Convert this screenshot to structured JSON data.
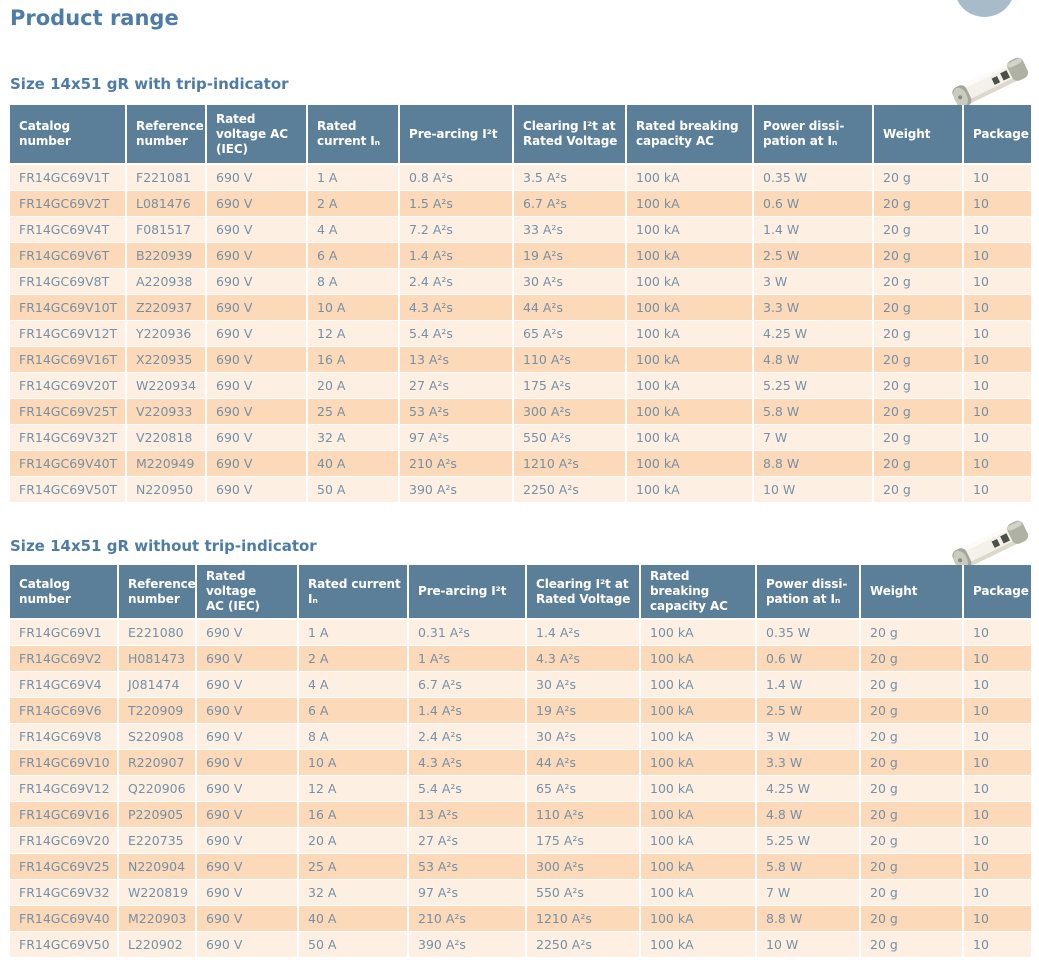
{
  "page": {
    "title": "Product range"
  },
  "decor": {
    "corner_circle_icon": "corner-circle-decoration",
    "fuse_icon": "fuse-product-photo"
  },
  "colors": {
    "heading_text": "#4d7ca6",
    "table_header_bg": "#5c7f99",
    "table_header_text": "#ffffff",
    "row_light_bg": "#fdf0e3",
    "row_dark_bg": "#fbd9b9",
    "cell_text": "#7590a6",
    "corner_circle": "#a7bbc9"
  },
  "sections": [
    {
      "heading": "Size 14x51 gR with trip-indicator",
      "columns": [
        "Catalog\nnumber",
        "Reference\nnumber",
        "Rated\nvoltage AC\n(IEC)",
        "Rated\ncurrent Iₙ",
        "Pre-arcing I²t",
        "Clearing I²t at\nRated Voltage",
        "Rated breaking\ncapacity AC",
        "Power dissi-\npation at Iₙ",
        "Weight",
        "Package"
      ],
      "rows": [
        [
          "FR14GC69V1T",
          "F221081",
          "690 V",
          "1 A",
          "0.8 A²s",
          "3.5 A²s",
          "100 kA",
          "0.35 W",
          "20 g",
          "10"
        ],
        [
          "FR14GC69V2T",
          "L081476",
          "690 V",
          "2 A",
          "1.5 A²s",
          "6.7 A²s",
          "100 kA",
          "0.6 W",
          "20 g",
          "10"
        ],
        [
          "FR14GC69V4T",
          "F081517",
          "690 V",
          "4 A",
          "7.2 A²s",
          "33 A²s",
          "100 kA",
          "1.4 W",
          "20 g",
          "10"
        ],
        [
          "FR14GC69V6T",
          "B220939",
          "690 V",
          "6 A",
          "1.4 A²s",
          "19 A²s",
          "100 kA",
          "2.5 W",
          "20 g",
          "10"
        ],
        [
          "FR14GC69V8T",
          "A220938",
          "690 V",
          "8 A",
          "2.4 A²s",
          "30 A²s",
          "100 kA",
          "3 W",
          "20 g",
          "10"
        ],
        [
          "FR14GC69V10T",
          "Z220937",
          "690 V",
          "10 A",
          "4.3 A²s",
          "44 A²s",
          "100 kA",
          "3.3 W",
          "20 g",
          "10"
        ],
        [
          "FR14GC69V12T",
          "Y220936",
          "690 V",
          "12 A",
          "5.4 A²s",
          "65 A²s",
          "100 kA",
          "4.25 W",
          "20 g",
          "10"
        ],
        [
          "FR14GC69V16T",
          "X220935",
          "690 V",
          "16 A",
          "13 A²s",
          "110 A²s",
          "100 kA",
          "4.8 W",
          "20 g",
          "10"
        ],
        [
          "FR14GC69V20T",
          "W220934",
          "690 V",
          "20 A",
          "27 A²s",
          "175 A²s",
          "100 kA",
          "5.25 W",
          "20 g",
          "10"
        ],
        [
          "FR14GC69V25T",
          "V220933",
          "690 V",
          "25 A",
          "53 A²s",
          "300 A²s",
          "100 kA",
          "5.8 W",
          "20 g",
          "10"
        ],
        [
          "FR14GC69V32T",
          "V220818",
          "690 V",
          "32 A",
          "97 A²s",
          "550 A²s",
          "100 kA",
          "7 W",
          "20 g",
          "10"
        ],
        [
          "FR14GC69V40T",
          "M220949",
          "690 V",
          "40 A",
          "210 A²s",
          "1210 A²s",
          "100 kA",
          "8.8 W",
          "20 g",
          "10"
        ],
        [
          "FR14GC69V50T",
          "N220950",
          "690 V",
          "50 A",
          "390 A²s",
          "2250 A²s",
          "100 kA",
          "10 W",
          "20 g",
          "10"
        ]
      ]
    },
    {
      "heading": "Size 14x51 gR without trip-indicator",
      "columns": [
        "Catalog\nnumber",
        "Reference\nnumber",
        "Rated voltage\nAC (IEC)",
        "Rated current\nIₙ",
        "Pre-arcing I²t",
        "Clearing I²t at\nRated Voltage",
        "Rated breaking\ncapacity AC",
        "Power dissi-\npation at Iₙ",
        "Weight",
        "Package"
      ],
      "rows": [
        [
          "FR14GC69V1",
          "E221080",
          "690 V",
          "1 A",
          "0.31 A²s",
          "1.4 A²s",
          "100 kA",
          "0.35 W",
          "20 g",
          "10"
        ],
        [
          "FR14GC69V2",
          "H081473",
          "690 V",
          "2 A",
          "1 A²s",
          "4.3 A²s",
          "100 kA",
          "0.6 W",
          "20 g",
          "10"
        ],
        [
          "FR14GC69V4",
          "J081474",
          "690 V",
          "4 A",
          "6.7 A²s",
          "30 A²s",
          "100 kA",
          "1.4 W",
          "20 g",
          "10"
        ],
        [
          "FR14GC69V6",
          "T220909",
          "690 V",
          "6 A",
          "1.4 A²s",
          "19 A²s",
          "100 kA",
          "2.5 W",
          "20 g",
          "10"
        ],
        [
          "FR14GC69V8",
          "S220908",
          "690 V",
          "8 A",
          "2.4 A²s",
          "30 A²s",
          "100 kA",
          "3 W",
          "20 g",
          "10"
        ],
        [
          "FR14GC69V10",
          "R220907",
          "690 V",
          "10 A",
          "4.3 A²s",
          "44 A²s",
          "100 kA",
          "3.3 W",
          "20 g",
          "10"
        ],
        [
          "FR14GC69V12",
          "Q220906",
          "690 V",
          "12 A",
          "5.4 A²s",
          "65 A²s",
          "100 kA",
          "4.25 W",
          "20 g",
          "10"
        ],
        [
          "FR14GC69V16",
          "P220905",
          "690 V",
          "16 A",
          "13 A²s",
          "110 A²s",
          "100 kA",
          "4.8 W",
          "20 g",
          "10"
        ],
        [
          "FR14GC69V20",
          "E220735",
          "690 V",
          "20 A",
          "27 A²s",
          "175 A²s",
          "100 kA",
          "5.25 W",
          "20 g",
          "10"
        ],
        [
          "FR14GC69V25",
          "N220904",
          "690 V",
          "25 A",
          "53 A²s",
          "300 A²s",
          "100 kA",
          "5.8 W",
          "20 g",
          "10"
        ],
        [
          "FR14GC69V32",
          "W220819",
          "690 V",
          "32 A",
          "97 A²s",
          "550 A²s",
          "100 kA",
          "7 W",
          "20 g",
          "10"
        ],
        [
          "FR14GC69V40",
          "M220903",
          "690 V",
          "40 A",
          "210 A²s",
          "1210 A²s",
          "100 kA",
          "8.8 W",
          "20 g",
          "10"
        ],
        [
          "FR14GC69V50",
          "L220902",
          "690 V",
          "50 A",
          "390 A²s",
          "2250 A²s",
          "100 kA",
          "10 W",
          "20 g",
          "10"
        ]
      ]
    }
  ]
}
